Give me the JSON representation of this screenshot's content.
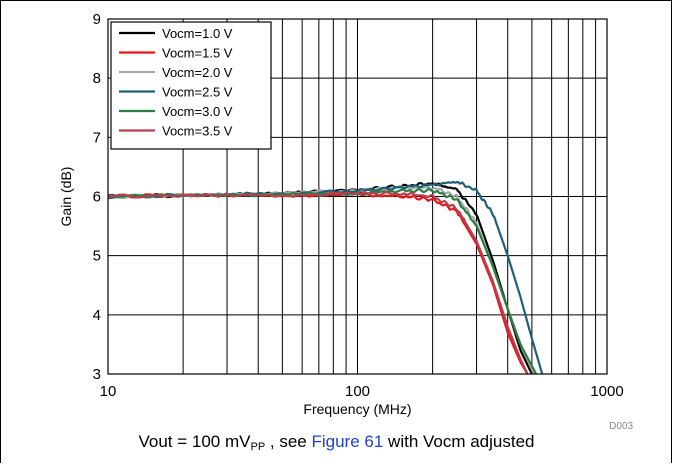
{
  "chart_data": {
    "type": "line",
    "xlabel": "Frequency (MHz)",
    "ylabel": "Gain (dB)",
    "xscale": "log",
    "xlim": [
      10,
      1000
    ],
    "ylim": [
      3,
      9
    ],
    "x_ticks": [
      "10",
      "100",
      "1000"
    ],
    "y_ticks": [
      "3",
      "4",
      "5",
      "6",
      "7",
      "8",
      "9"
    ],
    "grid": true,
    "legend_position": "top-left",
    "figure_code": "D003",
    "series": [
      {
        "name": "Vocm=1.0 V",
        "color": "#000000",
        "x": [
          10,
          20,
          50,
          100,
          150,
          200,
          250,
          300,
          350,
          400,
          450,
          500
        ],
        "y": [
          6.0,
          6.02,
          6.05,
          6.1,
          6.18,
          6.22,
          6.12,
          5.7,
          4.9,
          4.1,
          3.4,
          3.0
        ]
      },
      {
        "name": "Vocm=1.5 V",
        "color": "#e8141b",
        "x": [
          10,
          20,
          50,
          100,
          150,
          200,
          250,
          300,
          350,
          400,
          450,
          480
        ],
        "y": [
          6.0,
          6.02,
          6.02,
          6.03,
          6.0,
          5.95,
          5.75,
          5.2,
          4.5,
          3.7,
          3.2,
          3.0
        ]
      },
      {
        "name": "Vocm=2.0 V",
        "color": "#a6a6a6",
        "x": [
          10,
          20,
          50,
          100,
          150,
          200,
          250,
          300,
          350,
          400,
          450,
          510
        ],
        "y": [
          6.0,
          6.02,
          6.05,
          6.1,
          6.15,
          6.15,
          6.0,
          5.55,
          4.8,
          4.1,
          3.5,
          3.0
        ]
      },
      {
        "name": "Vocm=2.5 V",
        "color": "#1f5f7a",
        "x": [
          10,
          20,
          50,
          100,
          150,
          200,
          250,
          300,
          350,
          400,
          450,
          500,
          550
        ],
        "y": [
          6.0,
          6.02,
          6.05,
          6.1,
          6.15,
          6.2,
          6.25,
          6.1,
          5.7,
          5.0,
          4.3,
          3.6,
          3.0
        ]
      },
      {
        "name": "Vocm=3.0 V",
        "color": "#2e7d46",
        "x": [
          10,
          20,
          50,
          100,
          150,
          200,
          250,
          300,
          350,
          400,
          450,
          520
        ],
        "y": [
          6.0,
          6.02,
          6.03,
          6.05,
          6.1,
          6.1,
          5.95,
          5.5,
          4.8,
          4.1,
          3.5,
          3.0
        ]
      },
      {
        "name": "Vocm=3.5 V",
        "color": "#b5414d",
        "x": [
          10,
          20,
          50,
          100,
          150,
          200,
          250,
          300,
          350,
          400,
          450,
          480
        ],
        "y": [
          6.0,
          6.02,
          6.02,
          6.05,
          6.05,
          6.0,
          5.8,
          5.25,
          4.55,
          3.8,
          3.25,
          3.0
        ]
      }
    ]
  },
  "caption": {
    "prefix": "Vout = 100 mV",
    "subscript": "PP",
    "middle": " , see ",
    "link": "Figure 61",
    "suffix": " with Vocm adjusted"
  }
}
